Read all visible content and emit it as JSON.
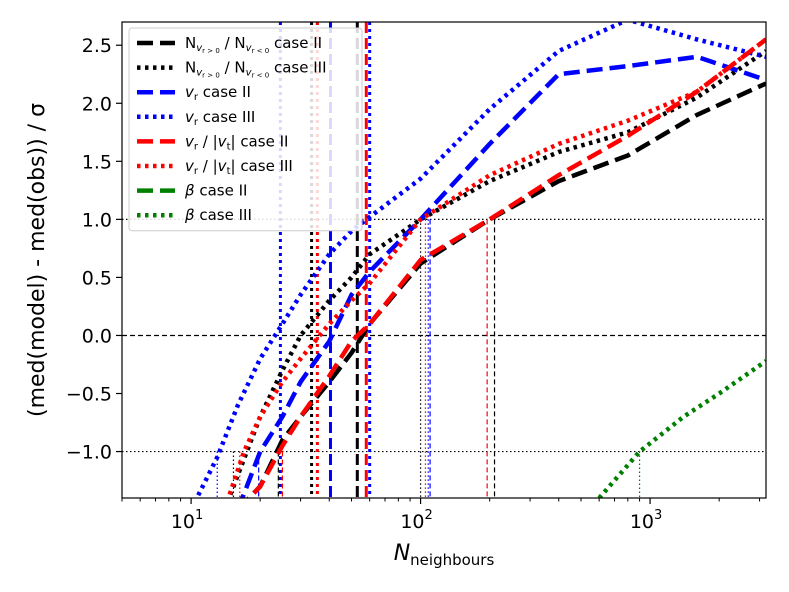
{
  "chart_data": {
    "type": "line",
    "xscale": "log",
    "xlim": [
      5,
      3200
    ],
    "ylim": [
      -1.4,
      2.7
    ],
    "xlabel": "N",
    "xlabel_sub": "neighbours",
    "ylabel": "(med(model) - med(obs)) / σ",
    "x_ticks": [
      {
        "value": 10,
        "base": "10",
        "exp": "1"
      },
      {
        "value": 100,
        "base": "10",
        "exp": "2"
      },
      {
        "value": 1000,
        "base": "10",
        "exp": "3"
      }
    ],
    "y_ticks": [
      {
        "value": -1.0,
        "label": "−1.0"
      },
      {
        "value": -0.5,
        "label": "−0.5"
      },
      {
        "value": 0.0,
        "label": "0.0"
      },
      {
        "value": 0.5,
        "label": "0.5"
      },
      {
        "value": 1.0,
        "label": "1.0"
      },
      {
        "value": 1.5,
        "label": "1.5"
      },
      {
        "value": 2.0,
        "label": "2.0"
      },
      {
        "value": 2.5,
        "label": "2.5"
      }
    ],
    "reference_lines": [
      {
        "y": 0.0,
        "style": "dashed"
      },
      {
        "y": 1.0,
        "style": "dotted"
      },
      {
        "y": -1.0,
        "style": "dotted"
      }
    ],
    "series": [
      {
        "name": "N_{vr>0} / N_{vr<0} case II",
        "color": "#000000",
        "style": "dashed",
        "x": [
          16,
          20,
          25,
          30,
          40,
          50,
          60,
          100,
          200,
          400,
          800,
          1600,
          3200
        ],
        "y": [
          -1.5,
          -1.3,
          -0.9,
          -0.7,
          -0.4,
          -0.15,
          0.1,
          0.62,
          1.0,
          1.33,
          1.55,
          1.9,
          2.17
        ]
      },
      {
        "name": "N_{vr>0} / N_{vr<0} case III",
        "color": "#000000",
        "style": "dotted",
        "x": [
          14,
          20,
          25,
          30,
          40,
          50,
          60,
          100,
          200,
          400,
          800,
          1600,
          3200
        ],
        "y": [
          -1.5,
          -0.7,
          -0.3,
          0.0,
          0.3,
          0.5,
          0.7,
          1.0,
          1.33,
          1.58,
          1.75,
          2.05,
          2.45
        ]
      },
      {
        "name": "v_r case II",
        "color": "#0000ff",
        "style": "dashed",
        "x": [
          16,
          20,
          25,
          30,
          40,
          50,
          60,
          100,
          200,
          400,
          800,
          1600,
          3200
        ],
        "y": [
          -1.5,
          -1.0,
          -0.7,
          -0.4,
          -0.05,
          0.35,
          0.55,
          1.0,
          1.65,
          2.25,
          2.32,
          2.4,
          2.2
        ]
      },
      {
        "name": "v_r case III",
        "color": "#0000ff",
        "style": "dotted",
        "x": [
          10,
          13,
          16,
          20,
          25,
          30,
          40,
          50,
          60,
          100,
          200,
          400,
          800,
          1600,
          3200
        ],
        "y": [
          -1.5,
          -1.05,
          -0.6,
          -0.2,
          0.1,
          0.35,
          0.7,
          0.9,
          1.02,
          1.35,
          1.95,
          2.45,
          2.72,
          2.55,
          2.4
        ]
      },
      {
        "name": "v_r / |v_t| case II",
        "color": "#ff0000",
        "style": "dashed",
        "x": [
          16,
          20,
          25,
          30,
          40,
          50,
          60,
          100,
          200,
          400,
          800,
          1600,
          3200
        ],
        "y": [
          -1.5,
          -1.3,
          -0.95,
          -0.7,
          -0.35,
          -0.05,
          0.1,
          0.65,
          1.0,
          1.38,
          1.72,
          2.1,
          2.55
        ]
      },
      {
        "name": "v_r / |v_t| case III",
        "color": "#ff0000",
        "style": "dotted",
        "x": [
          14,
          17,
          20,
          25,
          30,
          40,
          50,
          60,
          100,
          200,
          400,
          800,
          1600,
          3200
        ],
        "y": [
          -1.5,
          -1.0,
          -0.7,
          -0.4,
          -0.2,
          0.1,
          0.3,
          0.45,
          1.0,
          1.38,
          1.65,
          1.85,
          2.1,
          2.55
        ]
      },
      {
        "name": "β case II",
        "color": "#008000",
        "style": "dashed",
        "x": [],
        "y": []
      },
      {
        "name": "β case III",
        "color": "#008000",
        "style": "dotted",
        "x": [
          600,
          900,
          1400,
          2000,
          3200
        ],
        "y": [
          -1.4,
          -1.0,
          -0.7,
          -0.5,
          -0.22
        ]
      }
    ],
    "vlines_full": [
      {
        "x": 24.5,
        "color": "#0000ff",
        "style": "dotted"
      },
      {
        "x": 33.5,
        "color": "#000000",
        "style": "dotted"
      },
      {
        "x": 35.5,
        "color": "#ff0000",
        "style": "dotted"
      },
      {
        "x": 40.5,
        "color": "#0000ff",
        "style": "dashed"
      },
      {
        "x": 53,
        "color": "#000000",
        "style": "dashed"
      },
      {
        "x": 58,
        "color": "#ff0000",
        "style": "dashed"
      },
      {
        "x": 60,
        "color": "#0000ff",
        "style": "dotted"
      }
    ],
    "vlines_to_plus1": [
      {
        "x": 100,
        "color": "#000000",
        "style": "dotted"
      },
      {
        "x": 105,
        "color": "#ff0000",
        "style": "dotted"
      },
      {
        "x": 108,
        "color": "#0000ff",
        "style": "dotted"
      },
      {
        "x": 110,
        "color": "#0000ff",
        "style": "dashed"
      },
      {
        "x": 195,
        "color": "#ff0000",
        "style": "dashed"
      },
      {
        "x": 210,
        "color": "#000000",
        "style": "dashed"
      }
    ],
    "vlines_to_minus1": [
      {
        "x": 13,
        "color": "#0000ff",
        "style": "dotted"
      },
      {
        "x": 15.3,
        "color": "#000000",
        "style": "dotted"
      },
      {
        "x": 16.3,
        "color": "#ff0000",
        "style": "dotted"
      },
      {
        "x": 19.7,
        "color": "#0000ff",
        "style": "dashed"
      },
      {
        "x": 24,
        "color": "#000000",
        "style": "dashed"
      },
      {
        "x": 25,
        "color": "#ff0000",
        "style": "dashed"
      },
      {
        "x": 900,
        "color": "#008000",
        "style": "dotted"
      }
    ],
    "legend": {
      "placement": "upper-left",
      "entries": [
        {
          "base": "N",
          "sub": "v",
          "subsub": "r > 0",
          "mid": " / ",
          "base2": "N",
          "sub2": "v",
          "subsub2": "r < 0",
          "tail": " case II",
          "color": "#000000",
          "style": "dashed"
        },
        {
          "base": "N",
          "sub": "v",
          "subsub": "r > 0",
          "mid": " / ",
          "base2": "N",
          "sub2": "v",
          "subsub2": "r < 0",
          "tail": " case III",
          "color": "#000000",
          "style": "dotted"
        },
        {
          "sym": "v",
          "symsub": "r",
          "tail": " case II",
          "color": "#0000ff",
          "style": "dashed"
        },
        {
          "sym": "v",
          "symsub": "r",
          "tail": " case III",
          "color": "#0000ff",
          "style": "dotted"
        },
        {
          "sym": "v",
          "symsub": "r",
          "mid": " / |",
          "sym2": "v",
          "symsub2": "t",
          "post": "|",
          "tail": " case II",
          "color": "#ff0000",
          "style": "dashed"
        },
        {
          "sym": "v",
          "symsub": "r",
          "mid": " / |",
          "sym2": "v",
          "symsub2": "t",
          "post": "|",
          "tail": " case III",
          "color": "#ff0000",
          "style": "dotted"
        },
        {
          "sym": "β",
          "tail": " case II",
          "color": "#008000",
          "style": "dashed"
        },
        {
          "sym": "β",
          "tail": " case III",
          "color": "#008000",
          "style": "dotted"
        }
      ]
    }
  }
}
